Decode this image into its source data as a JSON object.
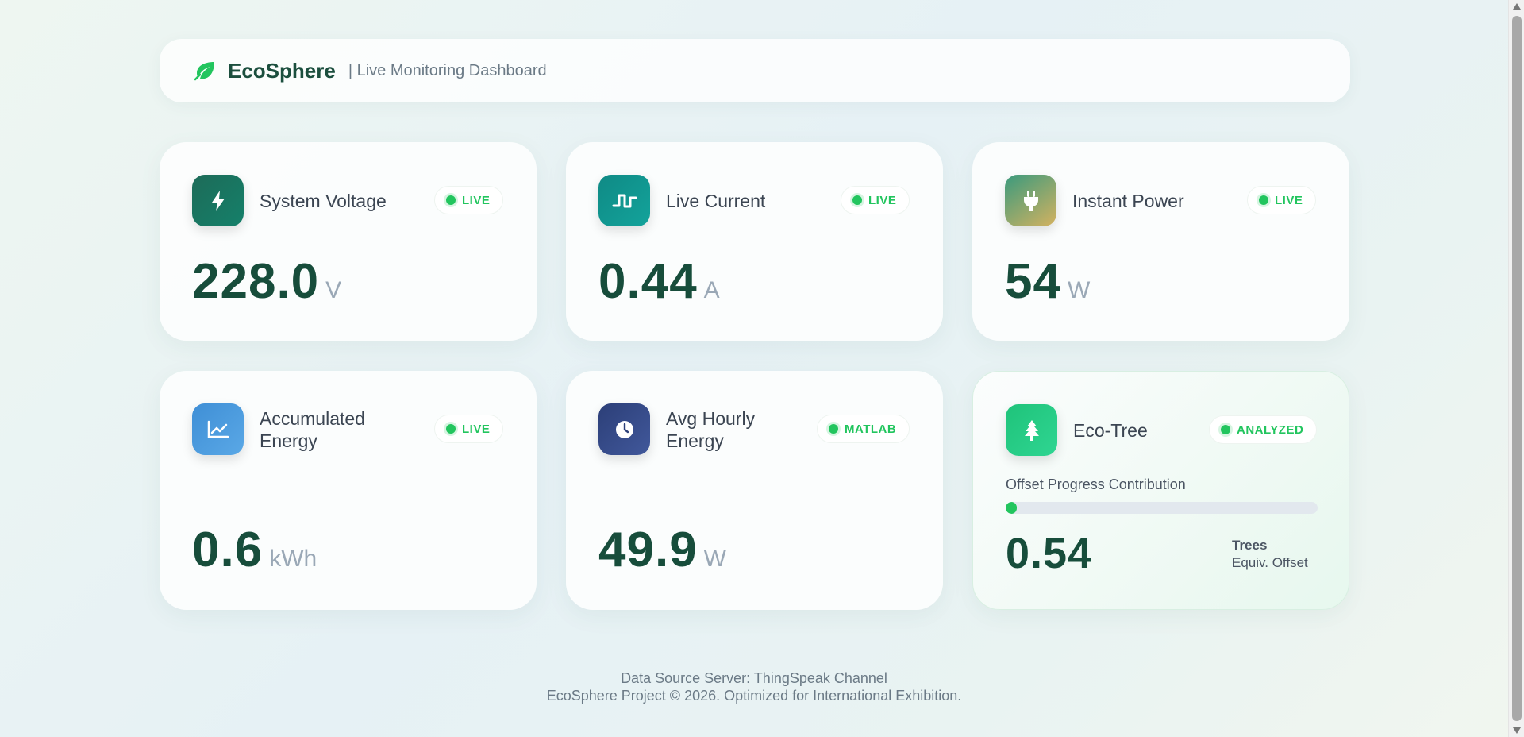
{
  "header": {
    "brand": "EcoSphere",
    "subtitle": "| Live Monitoring Dashboard",
    "icon": "leaf-icon"
  },
  "cards": [
    {
      "title": "System Voltage",
      "badge": "LIVE",
      "value": "228.0",
      "unit": "V",
      "icon": "bolt-icon",
      "icon_colors": [
        "#1d6b58",
        "#15806a"
      ]
    },
    {
      "title": "Live Current",
      "badge": "LIVE",
      "value": "0.44",
      "unit": "A",
      "icon": "pulse-wave-icon",
      "icon_colors": [
        "#0f8a85",
        "#13a39b"
      ]
    },
    {
      "title": "Instant Power",
      "badge": "LIVE",
      "value": "54",
      "unit": "W",
      "icon": "plug-icon",
      "icon_colors": [
        "#3a9a7d",
        "#d4b260"
      ]
    },
    {
      "title_line1": "Accumulated",
      "title_line2": "Energy",
      "badge": "LIVE",
      "value": "0.6",
      "unit": "kWh",
      "icon": "chart-line-icon",
      "icon_colors": [
        "#3f8fd6",
        "#5aa8e6"
      ]
    },
    {
      "title_line1": "Avg Hourly",
      "title_line2": "Energy",
      "badge": "MATLAB",
      "value": "49.9",
      "unit": "W",
      "icon": "clock-icon",
      "icon_colors": [
        "#2c3f78",
        "#41589b"
      ]
    },
    {
      "title": "Eco-Tree",
      "badge": "ANALYZED",
      "icon": "tree-icon",
      "icon_colors": [
        "#1fc37a",
        "#2fd592"
      ],
      "progress_label": "Offset Progress Contribution",
      "progress_fraction": 0.02,
      "value": "0.54",
      "note_line1": "Trees",
      "note_line2": "Equiv. Offset"
    }
  ],
  "footer": {
    "line1": "Data Source Server: ThingSpeak Channel",
    "line2": "EcoSphere Project © 2026. Optimized for International Exhibition."
  },
  "colors": {
    "accent_green": "#22c55e",
    "value_text": "#174d3b",
    "brand_text": "#1c4f3e"
  }
}
